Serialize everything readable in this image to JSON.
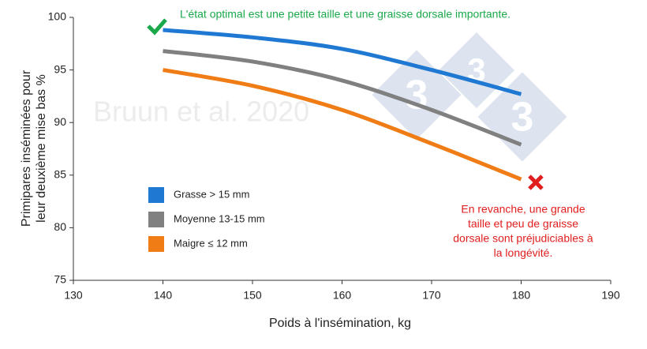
{
  "chart_data": {
    "type": "line",
    "x": [
      140,
      150,
      160,
      170,
      180
    ],
    "series": [
      {
        "name": "Grasse > 15 mm",
        "color": "#1f78d1",
        "values": [
          98.8,
          98.1,
          97.0,
          95.0,
          92.7
        ]
      },
      {
        "name": "Moyenne 13-15 mm",
        "color": "#808080",
        "values": [
          96.8,
          95.8,
          94.0,
          91.2,
          87.9
        ]
      },
      {
        "name": "Maigre ≤ 12 mm",
        "color": "#f07c16",
        "values": [
          95.0,
          93.5,
          91.2,
          88.0,
          84.6
        ]
      }
    ],
    "xlim": [
      130,
      190
    ],
    "xticks": [
      130,
      140,
      150,
      160,
      170,
      180,
      190
    ],
    "ylim": [
      75,
      100
    ],
    "yticks": [
      75,
      80,
      85,
      90,
      95,
      100
    ],
    "xlabel": "Poids à l'insémination, kg",
    "ylabel": [
      "Primipares inséminées pour",
      "leur deuxième mise bas %"
    ],
    "legend": "lower left",
    "watermark": "Bruun et al. 2020",
    "annotations": [
      {
        "lines": [
          "L'état optimal est une petite taille et une graisse dorsale importante."
        ],
        "color": "#1aa84a"
      },
      {
        "lines": [
          "En revanche, une grande",
          "taille et peu de graisse",
          "dorsale sont préjudiciables à",
          "la longévité."
        ],
        "color": "#e01e1e"
      }
    ]
  }
}
